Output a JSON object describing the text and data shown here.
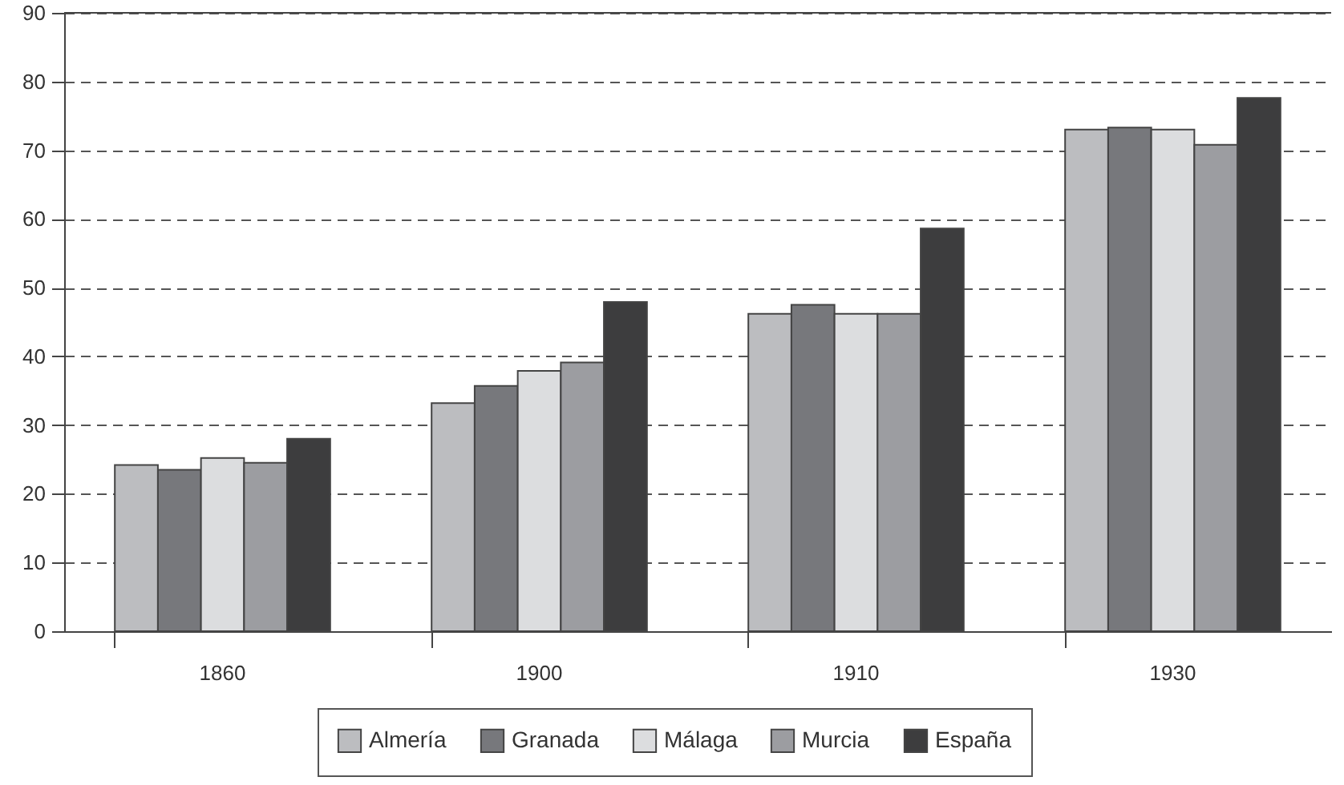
{
  "chart_data": {
    "type": "bar",
    "categories": [
      "1860",
      "1900",
      "1910",
      "1930"
    ],
    "series": [
      {
        "name": "Almería",
        "color": "#bcbdc0",
        "values": [
          24.2,
          33.2,
          46.2,
          73.0
        ]
      },
      {
        "name": "Granada",
        "color": "#77787c",
        "values": [
          23.5,
          35.7,
          47.5,
          73.3
        ]
      },
      {
        "name": "Málaga",
        "color": "#dcdddf",
        "values": [
          25.2,
          37.9,
          46.2,
          73.0
        ]
      },
      {
        "name": "Murcia",
        "color": "#9c9da1",
        "values": [
          24.5,
          39.1,
          46.2,
          70.8
        ]
      },
      {
        "name": "España",
        "color": "#3d3d3e",
        "values": [
          28.0,
          47.9,
          58.6,
          77.6
        ]
      }
    ],
    "ylim": [
      0,
      90
    ],
    "yticks": [
      0,
      10,
      20,
      30,
      40,
      50,
      60,
      70,
      80,
      90
    ],
    "grid": "y",
    "legend": "bottom"
  }
}
